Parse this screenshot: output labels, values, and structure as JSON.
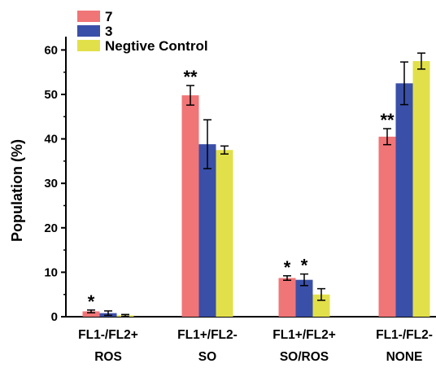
{
  "chart_data": {
    "type": "bar",
    "ylabel": "Population (%)",
    "ylim": [
      0,
      63
    ],
    "yticks": [
      0,
      10,
      20,
      30,
      40,
      50,
      60
    ],
    "categories": [
      "FL1-/FL2+",
      "FL1+/FL2-",
      "FL1+/FL2+",
      "FL1-/FL2-"
    ],
    "subcategories": [
      "ROS",
      "SO",
      "SO/ROS",
      "NONE"
    ],
    "series": [
      {
        "name": "7",
        "color": "#F07577",
        "values": [
          1.2,
          49.8,
          8.7,
          40.5
        ],
        "errors": [
          0.3,
          2.2,
          0.5,
          1.8
        ],
        "significance": [
          "*",
          "**",
          "*",
          "**"
        ]
      },
      {
        "name": "3",
        "color": "#3A4FA8",
        "values": [
          0.8,
          38.8,
          8.3,
          52.5
        ],
        "errors": [
          0.5,
          5.5,
          1.3,
          4.8
        ],
        "significance": [
          "",
          "",
          "*",
          ""
        ]
      },
      {
        "name": "Negtive Control",
        "color": "#E2E04A",
        "values": [
          0.3,
          37.5,
          5.0,
          57.5
        ],
        "errors": [
          0.2,
          0.9,
          1.3,
          1.8
        ],
        "significance": [
          "",
          "",
          "",
          ""
        ]
      }
    ],
    "legend_position": "top-left",
    "grid": false
  }
}
